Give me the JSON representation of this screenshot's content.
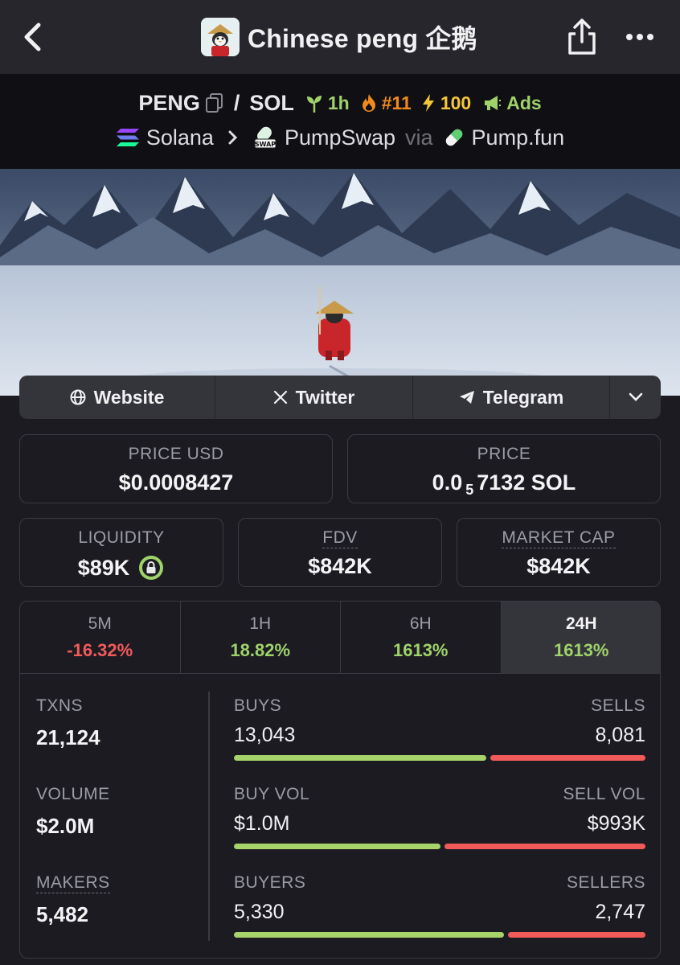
{
  "header": {
    "title": "Chinese peng 企鹅"
  },
  "pair": {
    "base": "PENG",
    "separator": "/",
    "quote": "SOL",
    "age": "1h",
    "rank": "#11",
    "boost": "100",
    "ads": "Ads",
    "chain": "Solana",
    "dex": "PumpSwap",
    "via": "via",
    "launchpad": "Pump.fun"
  },
  "links": {
    "website": "Website",
    "twitter": "Twitter",
    "telegram": "Telegram"
  },
  "prices": {
    "usd_label": "PRICE USD",
    "usd_value": "$0.0008427",
    "native_label": "PRICE",
    "native_prefix": "0.0",
    "native_zeros": "5",
    "native_rest": "7132 SOL"
  },
  "metrics": {
    "liquidity_label": "LIQUIDITY",
    "liquidity_value": "$89K",
    "fdv_label": "FDV",
    "fdv_value": "$842K",
    "mcap_label": "MARKET CAP",
    "mcap_value": "$842K"
  },
  "tabs": [
    {
      "label": "5M",
      "value": "-16.32%",
      "trend": "down"
    },
    {
      "label": "1H",
      "value": "18.82%",
      "trend": "up"
    },
    {
      "label": "6H",
      "value": "1613%",
      "trend": "up"
    },
    {
      "label": "24H",
      "value": "1613%",
      "trend": "up",
      "active": true
    }
  ],
  "stats": {
    "txns_label": "TXNS",
    "txns_value": "21,124",
    "volume_label": "VOLUME",
    "volume_value": "$2.0M",
    "makers_label": "MAKERS",
    "makers_value": "5,482",
    "rows": [
      {
        "left_label": "BUYS",
        "right_label": "SELLS",
        "left_value": "13,043",
        "right_value": "8,081",
        "buy_share": 0.617
      },
      {
        "left_label": "BUY VOL",
        "right_label": "SELL VOL",
        "left_value": "$1.0M",
        "right_value": "$993K",
        "buy_share": 0.505
      },
      {
        "left_label": "BUYERS",
        "right_label": "SELLERS",
        "left_value": "5,330",
        "right_value": "2,747",
        "buy_share": 0.66
      }
    ]
  },
  "colors": {
    "positive": "#9fd26a",
    "negative": "#f25a5a",
    "surface": "#1b1b21"
  },
  "icons": [
    "back-arrow-icon",
    "share-icon",
    "more-icon",
    "copy-icon",
    "sprout-icon",
    "flame-icon",
    "lightning-icon",
    "megaphone-icon",
    "solana-icon",
    "pumpswap-icon",
    "pill-icon",
    "globe-icon",
    "x-icon",
    "telegram-icon",
    "chevron-down-icon",
    "lock-icon"
  ]
}
